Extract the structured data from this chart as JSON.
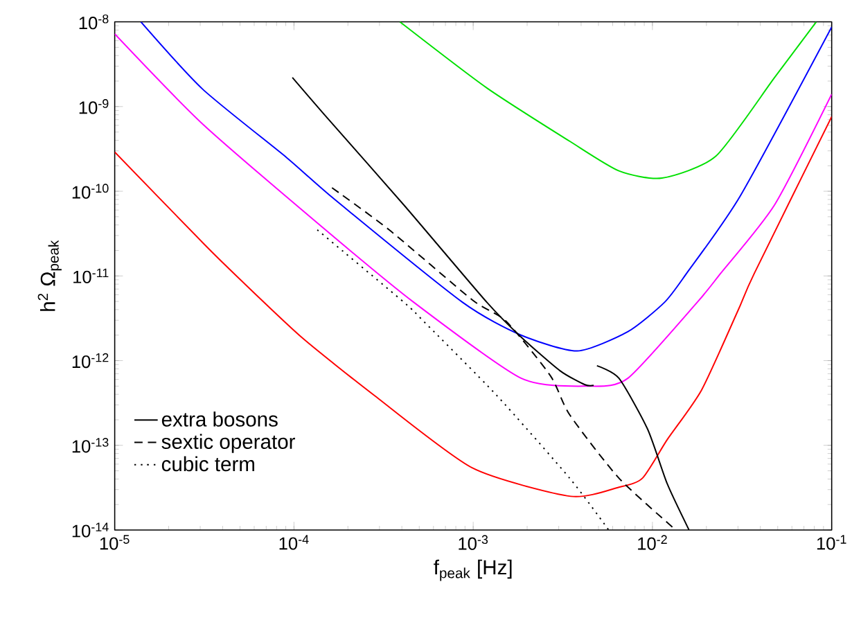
{
  "chart_data": {
    "type": "line",
    "xlabel": "f$_{peak}$ [Hz]",
    "ylabel": "h$^{2}$ Ω$_{peak}$",
    "log": "xy",
    "xlim": [
      1e-05,
      0.1
    ],
    "ylim": [
      1e-14,
      1e-08
    ],
    "xticks": [
      {
        "value": 1e-05,
        "label": "10$^{-5}$"
      },
      {
        "value": 0.0001,
        "label": "10$^{-4}$"
      },
      {
        "value": 0.001,
        "label": "10$^{-3}$"
      },
      {
        "value": 0.01,
        "label": "10$^{-2}$"
      },
      {
        "value": 0.1,
        "label": "10$^{-1}$"
      }
    ],
    "yticks": [
      {
        "value": 1e-14,
        "label": "10$^{-14}$"
      },
      {
        "value": 1e-13,
        "label": "10$^{-13}$"
      },
      {
        "value": 1e-12,
        "label": "10$^{-12}$"
      },
      {
        "value": 1e-11,
        "label": "10$^{-11}$"
      },
      {
        "value": 1e-10,
        "label": "10$^{-10}$"
      },
      {
        "value": 1e-09,
        "label": "10$^{-9}$"
      },
      {
        "value": 1e-08,
        "label": "10$^{-8}$"
      }
    ],
    "legend": "bottom left",
    "grid": false,
    "marker": "none",
    "series": [
      {
        "color": "#00e000",
        "line_style": "solid",
        "x": [
          0.00039,
          0.00119,
          0.00345,
          0.0065,
          0.0113,
          0.0226,
          0.048,
          0.082
        ],
        "values": [
          1e-08,
          1.66e-09,
          3.9e-10,
          1.74e-10,
          1.43e-10,
          2.6e-10,
          2.2e-09,
          1e-08
        ]
      },
      {
        "color": "#0000ff",
        "line_style": "solid",
        "x": [
          1.4e-05,
          3.1e-05,
          9.1e-05,
          0.00017,
          0.00087,
          0.00185,
          0.0038,
          0.0073,
          0.0117,
          0.0155,
          0.031,
          0.1
        ],
        "values": [
          1e-08,
          1.6e-09,
          2.5e-10,
          7.9e-11,
          4.9e-12,
          2e-12,
          1.3e-12,
          2.2e-12,
          4.9e-12,
          1.07e-11,
          8.9e-11,
          8.7e-09
        ]
      },
      {
        "color": "#ff00ff",
        "line_style": "solid",
        "x": [
          1e-05,
          3.1e-05,
          0.00015,
          0.000465,
          0.00185,
          0.0044,
          0.0073,
          0.0178,
          0.024,
          0.048,
          0.1
        ],
        "values": [
          7.2e-09,
          6.2e-10,
          3.5e-11,
          4.9e-12,
          6.2e-13,
          5e-13,
          6.2e-13,
          4.9e-12,
          1.07e-11,
          6.9e-11,
          1.4e-09
        ]
      },
      {
        "color": "#ff0000",
        "line_style": "solid",
        "x": [
          1e-05,
          3.2e-05,
          4.9e-05,
          0.00011,
          0.00028,
          0.00099,
          0.0035,
          0.0065,
          0.0088,
          0.0121,
          0.0188,
          0.03,
          0.037,
          0.1
        ],
        "values": [
          2.9e-10,
          2.3e-11,
          9.5e-12,
          1.9e-12,
          3.9e-13,
          5.4e-14,
          2.5e-14,
          3.2e-14,
          4.1e-14,
          1.17e-13,
          4.5e-13,
          3.9e-12,
          1.07e-11,
          7.6e-10
        ]
      },
      {
        "name": "extra bosons",
        "color": "#000000",
        "line_style": "solid",
        "x": [
          9.8e-05,
          0.000148,
          0.00041,
          0.00119,
          0.00185,
          0.00305,
          0.0042,
          0.0047,
          0.0048,
          0.0049,
          0.0065,
          0.0094,
          0.0121,
          0.016
        ],
        "values": [
          2.2e-09,
          8e-10,
          6.9e-11,
          4.9e-12,
          1.9e-12,
          7.6e-13,
          5.2e-13,
          5.1e-13,
          null,
          8.7e-13,
          6.2e-13,
          1.55e-13,
          3.5e-14,
          1e-14
        ]
      },
      {
        "name": "sextic operator",
        "color": "#000000",
        "line_style": "dashed",
        "x": [
          0.000163,
          0.00034,
          0.00099,
          0.00153,
          0.0027,
          0.00345,
          0.0065,
          0.0135
        ],
        "values": [
          1.1e-10,
          3.5e-11,
          5.2e-12,
          2.9e-12,
          6.6e-13,
          2.3e-13,
          4.1e-14,
          1e-14
        ]
      },
      {
        "name": "cubic term",
        "color": "#000000",
        "line_style": "dotted",
        "x": [
          0.000135,
          0.00041,
          0.00053,
          0.00135,
          0.00345,
          0.0057
        ],
        "values": [
          3.5e-11,
          4.9e-12,
          2.9e-12,
          3.9e-13,
          4.1e-14,
          1e-14
        ]
      }
    ]
  }
}
